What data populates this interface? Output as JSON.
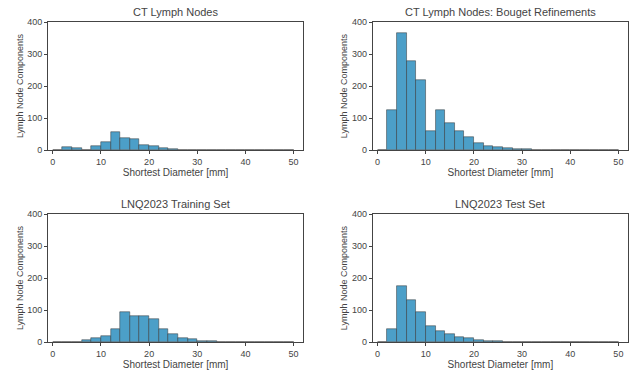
{
  "chart_data": [
    {
      "type": "bar",
      "title": "CT Lymph Nodes",
      "xlabel": "Shortest Diameter [mm]",
      "ylabel": "Lymph Node Components",
      "bins": [
        0,
        2,
        4,
        6,
        8,
        10,
        12,
        14,
        16,
        18,
        20,
        22,
        24,
        26,
        28,
        30,
        32,
        34,
        36,
        38,
        40,
        42,
        44,
        46,
        48,
        50
      ],
      "values": [
        0,
        8,
        5,
        0,
        12,
        26,
        55,
        38,
        35,
        15,
        13,
        5,
        2,
        1,
        0,
        0,
        0,
        0,
        0,
        0,
        0,
        0,
        0,
        0,
        0
      ],
      "color": "#4C9FC8",
      "xlim": [
        -1,
        52
      ],
      "ylim": [
        0,
        400
      ],
      "xticks": [
        0,
        10,
        20,
        30,
        40,
        50
      ],
      "yticks": [
        0,
        100,
        200,
        300,
        400
      ],
      "grid": false
    },
    {
      "type": "bar",
      "title": "CT Lymph Nodes: Bouget Refinements",
      "xlabel": "Shortest Diameter [mm]",
      "ylabel": "Lymph Node Components",
      "bins": [
        0,
        2,
        4,
        6,
        8,
        10,
        12,
        14,
        16,
        18,
        20,
        22,
        24,
        26,
        28,
        30,
        32,
        34,
        36,
        38,
        40,
        42,
        44,
        46,
        48,
        50
      ],
      "values": [
        0,
        125,
        365,
        278,
        220,
        58,
        125,
        84,
        58,
        42,
        22,
        14,
        10,
        5,
        3,
        2,
        0,
        0,
        0,
        0,
        0,
        0,
        0,
        0,
        0
      ],
      "color": "#4C9FC8",
      "xlim": [
        -1,
        52
      ],
      "ylim": [
        0,
        400
      ],
      "xticks": [
        0,
        10,
        20,
        30,
        40,
        50
      ],
      "yticks": [
        0,
        100,
        200,
        300,
        400
      ],
      "grid": false
    },
    {
      "type": "bar",
      "title": "LNQ2023 Training Set",
      "xlabel": "Shortest Diameter [mm]",
      "ylabel": "Lymph Node Components",
      "bins": [
        0,
        2,
        4,
        6,
        8,
        10,
        12,
        14,
        16,
        18,
        20,
        22,
        24,
        26,
        28,
        30,
        32,
        34,
        36,
        38,
        40,
        42,
        44,
        46,
        48,
        50
      ],
      "values": [
        0,
        0,
        0,
        5,
        12,
        20,
        42,
        95,
        80,
        80,
        72,
        40,
        25,
        12,
        8,
        4,
        2,
        1,
        0,
        0,
        0,
        0,
        0,
        0,
        0
      ],
      "color": "#4C9FC8",
      "xlim": [
        -1,
        52
      ],
      "ylim": [
        0,
        400
      ],
      "xticks": [
        0,
        10,
        20,
        30,
        40,
        50
      ],
      "yticks": [
        0,
        100,
        200,
        300,
        400
      ],
      "grid": false
    },
    {
      "type": "bar",
      "title": "LNQ2023 Test Set",
      "xlabel": "Shortest Diameter [mm]",
      "ylabel": "Lymph Node Components",
      "bins": [
        0,
        2,
        4,
        6,
        8,
        10,
        12,
        14,
        16,
        18,
        20,
        22,
        24,
        26,
        28,
        30,
        32,
        34,
        36,
        38,
        40,
        42,
        44,
        46,
        48,
        50
      ],
      "values": [
        0,
        40,
        175,
        130,
        95,
        50,
        35,
        25,
        15,
        12,
        7,
        4,
        2,
        1,
        0,
        0,
        0,
        0,
        0,
        0,
        0,
        0,
        0,
        0,
        0
      ],
      "color": "#4C9FC8",
      "xlim": [
        -1,
        52
      ],
      "ylim": [
        0,
        400
      ],
      "xticks": [
        0,
        10,
        20,
        30,
        40,
        50
      ],
      "yticks": [
        0,
        100,
        200,
        300,
        400
      ],
      "grid": false
    }
  ]
}
